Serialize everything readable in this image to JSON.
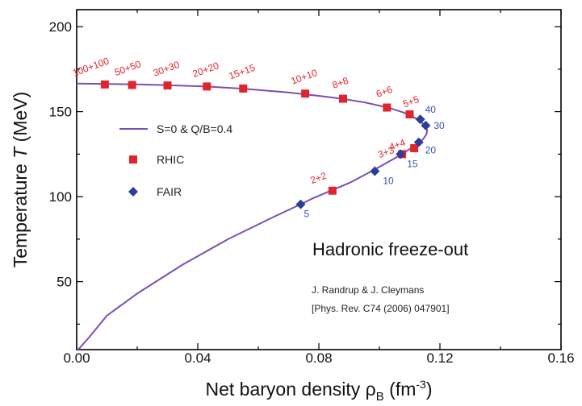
{
  "chart_data": {
    "type": "line",
    "xlabel": "Net baryon density ρ",
    "xlabel_sub": "B",
    "xlabel_unit_open": " (fm",
    "xlabel_unit_exp": "-3",
    "xlabel_unit_close": ")",
    "ylabel": "Temperature ",
    "ylabel_var": "T",
    "ylabel_unit": " (MeV)",
    "xlim": [
      0.0,
      0.16
    ],
    "ylim": [
      10,
      210
    ],
    "x_ticks": [
      "0.00",
      "0.04",
      "0.08",
      "0.12",
      "0.16"
    ],
    "y_ticks": [
      "50",
      "100",
      "150",
      "200"
    ],
    "grid": false,
    "legend_position": "left-middle",
    "colors": {
      "curve": "#7b4fb3",
      "rhic": "#e0242b",
      "fair": "#2b3f9a",
      "rhic_label": "#e0242b",
      "fair_label": "#3a52a8"
    },
    "series": [
      {
        "name": "S=0 & Q/B=0.4",
        "kind": "line",
        "x": [
          0.0,
          0.01,
          0.02,
          0.03,
          0.043,
          0.055,
          0.07,
          0.08,
          0.088,
          0.095,
          0.103,
          0.108,
          0.111,
          0.1135,
          0.1152,
          0.1158,
          0.1155,
          0.1145,
          0.113,
          0.1105,
          0.105,
          0.098,
          0.09,
          0.084,
          0.078,
          0.074,
          0.065,
          0.05,
          0.035,
          0.02,
          0.01,
          0.004,
          0.0
        ],
        "y": [
          166.5,
          166.3,
          166.0,
          165.6,
          164.8,
          163.5,
          161.3,
          159.3,
          157.5,
          155.5,
          152.3,
          149.5,
          147.0,
          144.5,
          141.5,
          139.0,
          136.5,
          134.0,
          131.5,
          128.5,
          122.5,
          115.5,
          108.0,
          103.5,
          99.0,
          95.5,
          88.0,
          75.0,
          60.0,
          43.0,
          30.0,
          17.0,
          9.0
        ]
      },
      {
        "name": "RHIC",
        "kind": "scatter",
        "marker": "square",
        "points": [
          {
            "x": 0.0093,
            "y": 166.0,
            "label": "100+100"
          },
          {
            "x": 0.0183,
            "y": 165.7,
            "label": "50+50"
          },
          {
            "x": 0.03,
            "y": 165.4,
            "label": "30+30"
          },
          {
            "x": 0.043,
            "y": 164.8,
            "label": "20+20"
          },
          {
            "x": 0.055,
            "y": 163.6,
            "label": "15+15"
          },
          {
            "x": 0.0755,
            "y": 160.6,
            "label": "10+10"
          },
          {
            "x": 0.088,
            "y": 157.6,
            "label": "8+8"
          },
          {
            "x": 0.1025,
            "y": 152.4,
            "label": "6+6"
          },
          {
            "x": 0.11,
            "y": 148.4,
            "label": "5+5"
          },
          {
            "x": 0.1115,
            "y": 128.5,
            "label": "4+4"
          },
          {
            "x": 0.1075,
            "y": 125.0,
            "label": "3+3"
          },
          {
            "x": 0.0845,
            "y": 103.5,
            "label": "2+2"
          }
        ]
      },
      {
        "name": "FAIR",
        "kind": "scatter",
        "marker": "diamond",
        "points": [
          {
            "x": 0.1135,
            "y": 145.5,
            "label": "40"
          },
          {
            "x": 0.1153,
            "y": 141.8,
            "label": "30"
          },
          {
            "x": 0.113,
            "y": 132.0,
            "label": "20"
          },
          {
            "x": 0.107,
            "y": 125.0,
            "label": "15"
          },
          {
            "x": 0.0985,
            "y": 115.0,
            "label": "10"
          },
          {
            "x": 0.074,
            "y": 95.5,
            "label": "5"
          }
        ]
      }
    ],
    "annotations": {
      "title": "Hadronic freeze-out",
      "ref1": "J. Randrup & J. Cleymans",
      "ref2": "[Phys. Rev. C74 (2006) 047901]"
    }
  }
}
